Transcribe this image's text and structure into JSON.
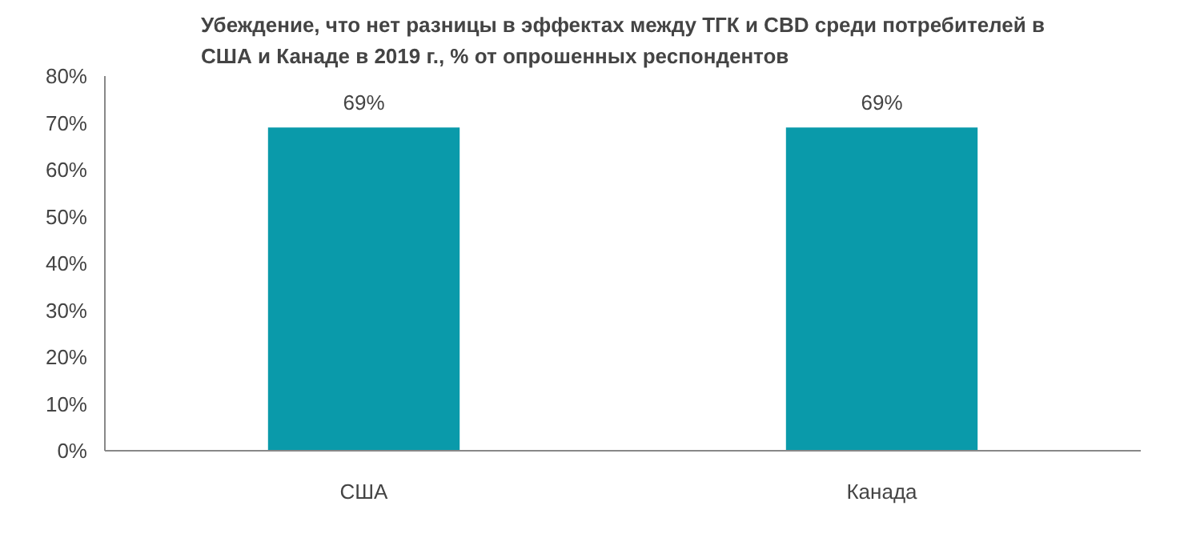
{
  "chart_data": {
    "type": "bar",
    "title": "Убеждение, что нет разницы в эффектах между ТГК и CBD среди потребителей в\nСША и Канаде в 2019 г., % от опрошенных респондентов",
    "categories": [
      "США",
      "Канада"
    ],
    "values": [
      69,
      69
    ],
    "color": "#0a9aaa",
    "value_labels": [
      "69%",
      "69%"
    ],
    "ylim": [
      0,
      80
    ],
    "yticks": [
      {
        "value": 0,
        "label": "0%"
      },
      {
        "value": 10,
        "label": "10%"
      },
      {
        "value": 20,
        "label": "20%"
      },
      {
        "value": 30,
        "label": "30%"
      },
      {
        "value": 40,
        "label": "40%"
      },
      {
        "value": 50,
        "label": "50%"
      },
      {
        "value": 60,
        "label": "60%"
      },
      {
        "value": 70,
        "label": "70%"
      },
      {
        "value": 80,
        "label": "80%"
      }
    ],
    "grid": false
  }
}
